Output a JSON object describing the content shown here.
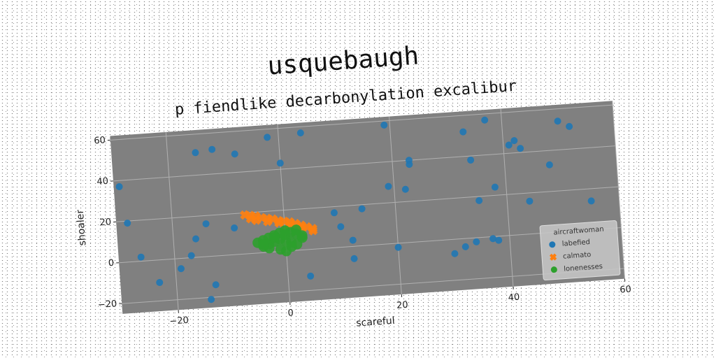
{
  "chart_data": {
    "type": "scatter",
    "title": "usquebaugh",
    "subtitle": "p fiendlike decarbonylation excalibur",
    "x_label": "scareful",
    "y_label": "shoaler",
    "xlim": [
      -30,
      60
    ],
    "ylim": [
      -25,
      62
    ],
    "xticks": [
      {
        "value": -20,
        "label": "−20"
      },
      0,
      20,
      40,
      60
    ],
    "yticks": [
      {
        "value": -20,
        "label": "−20"
      },
      0,
      20,
      40,
      60
    ],
    "grid": true,
    "legend": "lower right",
    "legend_title": "aircraftwoman",
    "series": [
      {
        "name": "labefied",
        "color": "#1f77b4",
        "marker": "circle",
        "x": [
          -29,
          -28,
          -26,
          -23,
          -19,
          -17,
          -16,
          -14,
          -15,
          -12,
          -13,
          -14,
          -8,
          -9,
          -2,
          0,
          4,
          4,
          9,
          10,
          12,
          12,
          14,
          19,
          20,
          19,
          22,
          23,
          23,
          30,
          32,
          34,
          35,
          33,
          34,
          37,
          38,
          38,
          37,
          42,
          41,
          43,
          44,
          48,
          50,
          52,
          55
        ],
        "values": [
          37,
          19,
          2,
          -11,
          -5,
          1,
          9,
          16,
          51,
          52,
          -14,
          -21,
          49,
          13,
          56,
          43,
          57,
          -13,
          17,
          10,
          3,
          -6,
          18,
          28,
          -2,
          58,
          26,
          40,
          38,
          -7,
          -4,
          -2,
          18,
          52,
          38,
          -1,
          -2,
          24,
          57,
          46,
          44,
          42,
          16,
          33,
          54,
          51,
          14
        ]
      },
      {
        "name": "calmato",
        "color": "#ff7f0e",
        "marker": "x",
        "x": [
          -7,
          -6,
          -5,
          -4,
          -3,
          -2,
          -1,
          0,
          1,
          2,
          3,
          4,
          5,
          -6,
          -5,
          -3,
          -1,
          1,
          3,
          5
        ],
        "values": [
          19,
          18.5,
          18,
          17,
          16.5,
          16,
          15,
          14.5,
          14,
          13,
          12,
          11,
          10,
          17,
          16,
          15,
          14,
          12.5,
          11,
          9
        ]
      },
      {
        "name": "lonenesses",
        "color": "#2ca02c",
        "marker": "circle",
        "x": [
          -5,
          -4,
          -3,
          -2,
          -1,
          0,
          1,
          2,
          3,
          -4,
          -3,
          -2,
          -1,
          0,
          1,
          2,
          -3,
          -1,
          0,
          1,
          -2,
          0,
          2,
          -4,
          3
        ],
        "values": [
          5,
          6,
          7,
          8,
          9,
          10,
          9,
          8,
          7,
          3,
          4,
          5,
          6,
          5,
          4,
          3,
          2,
          1,
          0,
          2,
          7,
          8,
          10,
          4,
          6
        ]
      }
    ]
  }
}
